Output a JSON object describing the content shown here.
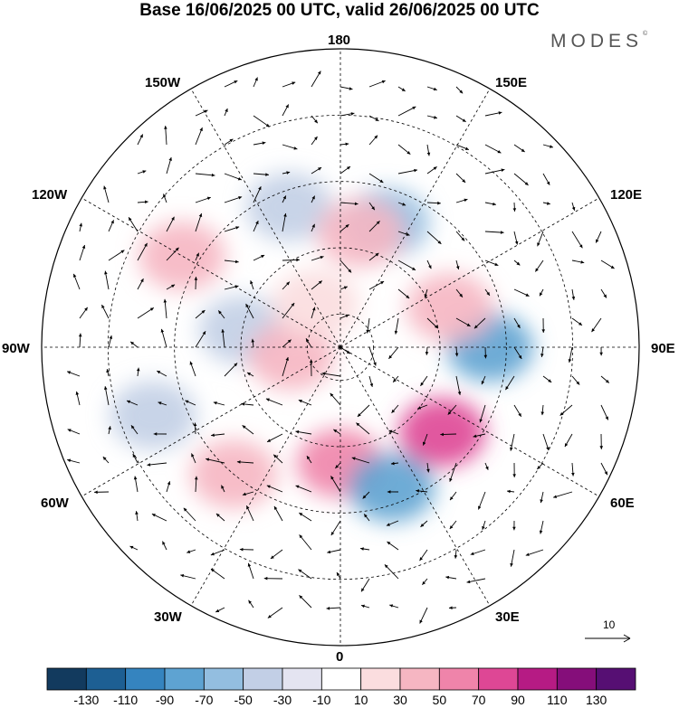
{
  "title": "Base 16/06/2025 00 UTC, valid 26/06/2025 00 UTC",
  "brand": "MODES",
  "brand_mark": "©",
  "longitude_labels": {
    "n180": "180",
    "e150": "150E",
    "e120": "120E",
    "e90": "90E",
    "e60": "60E",
    "e30": "30E",
    "s0": "0",
    "w30": "30W",
    "w60": "60W",
    "w90": "90W",
    "w120": "120W",
    "w150": "150W"
  },
  "reference_vector_label": "10",
  "colorbar": {
    "levels": [
      "-130",
      "-110",
      "-90",
      "-70",
      "-50",
      "-30",
      "-10",
      "10",
      "30",
      "50",
      "70",
      "90",
      "110",
      "130"
    ],
    "colors": [
      "#123a5e",
      "#1d5f93",
      "#3584bf",
      "#5ea3d2",
      "#93bee0",
      "#c2cfe6",
      "#e4e4f1",
      "#ffffff",
      "#fbdddf",
      "#f6b6c2",
      "#ef84aa",
      "#de4795",
      "#b61b84",
      "#850e7a",
      "#560f73"
    ]
  },
  "anomaly_blobs": [
    {
      "lon": 160,
      "lat": 50,
      "level": 4
    },
    {
      "lon": -160,
      "lat": 45,
      "level": 5
    },
    {
      "lon": 170,
      "lat": 55,
      "level": 9
    },
    {
      "lon": -120,
      "lat": 35,
      "level": 9
    },
    {
      "lon": -100,
      "lat": 60,
      "level": 5
    },
    {
      "lon": -80,
      "lat": 75,
      "level": 9
    },
    {
      "lon": -70,
      "lat": 30,
      "level": 5
    },
    {
      "lon": -40,
      "lat": 40,
      "level": 9
    },
    {
      "lon": 0,
      "lat": 55,
      "level": 10
    },
    {
      "lon": 20,
      "lat": 45,
      "level": 3
    },
    {
      "lon": 50,
      "lat": 50,
      "level": 11
    },
    {
      "lon": 90,
      "lat": 45,
      "level": 3
    },
    {
      "lon": 110,
      "lat": 55,
      "level": 9
    },
    {
      "lon": -150,
      "lat": 75,
      "level": 8
    }
  ]
}
